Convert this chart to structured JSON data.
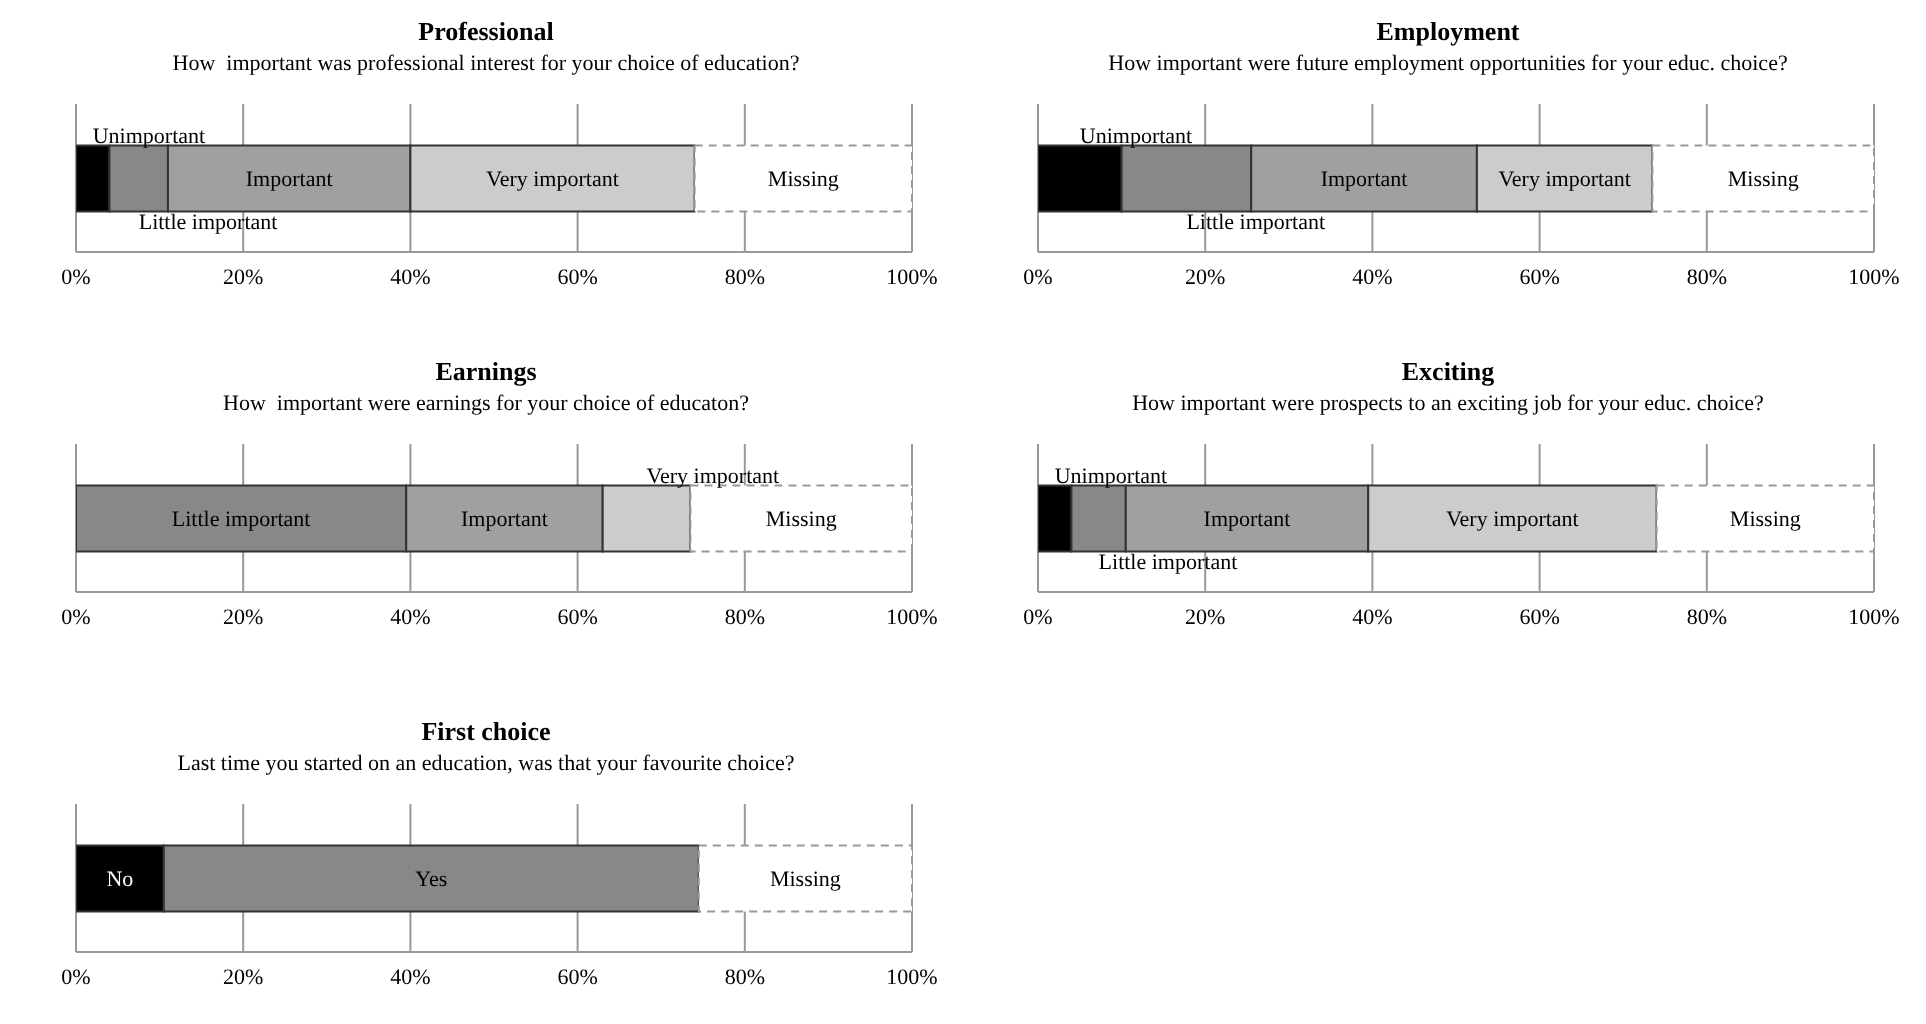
{
  "chart_data": [
    {
      "type": "bar",
      "orientation": "horizontal",
      "stacked": true,
      "title": "Professional",
      "subtitle": "How  important was professional interest for your choice of education?",
      "categories": [
        null
      ],
      "series": [
        {
          "name": "Unimportant",
          "color": "#000000",
          "values": [
            4
          ]
        },
        {
          "name": "Little important",
          "color": "#888888",
          "values": [
            7
          ]
        },
        {
          "name": "Important",
          "color": "#a0a0a0",
          "values": [
            29
          ]
        },
        {
          "name": "Very important",
          "color": "#cccccc",
          "values": [
            34
          ]
        },
        {
          "name": "Missing",
          "color": "#ffffff",
          "line_style": "dashed",
          "values": [
            26
          ]
        }
      ],
      "xlim": [
        0,
        100
      ],
      "xticks": [
        {
          "value": 0,
          "label": "0%"
        },
        {
          "value": 20,
          "label": "20%"
        },
        {
          "value": 40,
          "label": "40%"
        },
        {
          "value": 60,
          "label": "60%"
        },
        {
          "value": 80,
          "label": "80%"
        },
        {
          "value": 100,
          "label": "100%"
        }
      ],
      "grid": "x",
      "legend": false
    },
    {
      "type": "bar",
      "orientation": "horizontal",
      "stacked": true,
      "title": "Employment",
      "subtitle": "How important were future employment opportunities for your educ. choice?",
      "categories": [
        null
      ],
      "series": [
        {
          "name": "Unimportant",
          "color": "#000000",
          "values": [
            10
          ]
        },
        {
          "name": "Little important",
          "color": "#888888",
          "values": [
            15.5
          ]
        },
        {
          "name": "Important",
          "color": "#a0a0a0",
          "values": [
            27
          ]
        },
        {
          "name": "Very important",
          "color": "#cccccc",
          "values": [
            21
          ]
        },
        {
          "name": "Missing",
          "color": "#ffffff",
          "line_style": "dashed",
          "values": [
            26.5
          ]
        }
      ],
      "xlim": [
        0,
        100
      ],
      "xticks": [
        {
          "value": 0,
          "label": "0%"
        },
        {
          "value": 20,
          "label": "20%"
        },
        {
          "value": 40,
          "label": "40%"
        },
        {
          "value": 60,
          "label": "60%"
        },
        {
          "value": 80,
          "label": "80%"
        },
        {
          "value": 100,
          "label": "100%"
        }
      ],
      "grid": "x",
      "legend": false
    },
    {
      "type": "bar",
      "orientation": "horizontal",
      "stacked": true,
      "title": "Earnings",
      "subtitle": "How  important were earnings for your choice of educaton?",
      "categories": [
        null
      ],
      "series": [
        {
          "name": "Little important",
          "color": "#888888",
          "values": [
            39.5
          ]
        },
        {
          "name": "Important",
          "color": "#a0a0a0",
          "values": [
            23.5
          ]
        },
        {
          "name": "Very important",
          "color": "#cccccc",
          "values": [
            10.5
          ]
        },
        {
          "name": "Missing",
          "color": "#ffffff",
          "line_style": "dashed",
          "values": [
            26.5
          ]
        }
      ],
      "xlim": [
        0,
        100
      ],
      "xticks": [
        {
          "value": 0,
          "label": "0%"
        },
        {
          "value": 20,
          "label": "20%"
        },
        {
          "value": 40,
          "label": "40%"
        },
        {
          "value": 60,
          "label": "60%"
        },
        {
          "value": 80,
          "label": "80%"
        },
        {
          "value": 100,
          "label": "100%"
        }
      ],
      "grid": "x",
      "legend": false
    },
    {
      "type": "bar",
      "orientation": "horizontal",
      "stacked": true,
      "title": "Exciting",
      "subtitle": "How important were prospects to an exciting job for your educ. choice?",
      "categories": [
        null
      ],
      "series": [
        {
          "name": "Unimportant",
          "color": "#000000",
          "values": [
            4
          ]
        },
        {
          "name": "Little important",
          "color": "#888888",
          "values": [
            6.5
          ]
        },
        {
          "name": "Important",
          "color": "#a0a0a0",
          "values": [
            29
          ]
        },
        {
          "name": "Very important",
          "color": "#cccccc",
          "values": [
            34.5
          ]
        },
        {
          "name": "Missing",
          "color": "#ffffff",
          "line_style": "dashed",
          "values": [
            26
          ]
        }
      ],
      "xlim": [
        0,
        100
      ],
      "xticks": [
        {
          "value": 0,
          "label": "0%"
        },
        {
          "value": 20,
          "label": "20%"
        },
        {
          "value": 40,
          "label": "40%"
        },
        {
          "value": 60,
          "label": "60%"
        },
        {
          "value": 80,
          "label": "80%"
        },
        {
          "value": 100,
          "label": "100%"
        }
      ],
      "grid": "x",
      "legend": false
    },
    {
      "type": "bar",
      "orientation": "horizontal",
      "stacked": true,
      "title": "First choice",
      "subtitle": "Last time you started on an education, was that your favourite choice?",
      "categories": [
        null
      ],
      "series": [
        {
          "name": "No",
          "color": "#000000",
          "values": [
            10.5
          ]
        },
        {
          "name": "Yes",
          "color": "#888888",
          "values": [
            64
          ]
        },
        {
          "name": "Missing",
          "color": "#ffffff",
          "line_style": "dashed",
          "values": [
            25.5
          ]
        }
      ],
      "xlim": [
        0,
        100
      ],
      "xticks": [
        {
          "value": 0,
          "label": "0%"
        },
        {
          "value": 20,
          "label": "20%"
        },
        {
          "value": 40,
          "label": "40%"
        },
        {
          "value": 60,
          "label": "60%"
        },
        {
          "value": 80,
          "label": "80%"
        },
        {
          "value": 100,
          "label": "100%"
        }
      ],
      "grid": "x",
      "legend": false
    }
  ]
}
